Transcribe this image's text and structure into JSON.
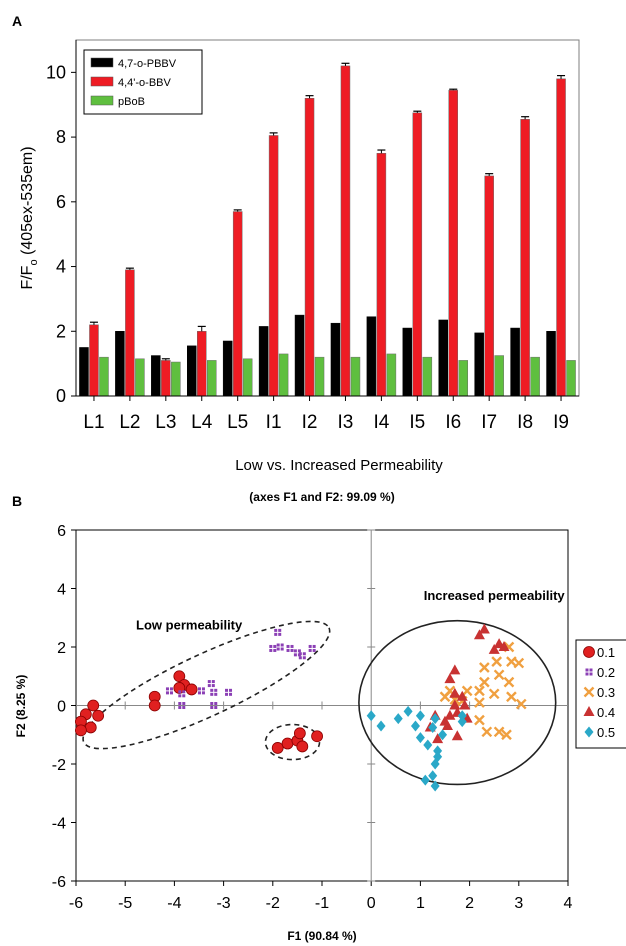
{
  "panels": {
    "a_label": "A",
    "b_label": "B"
  },
  "chart_data": [
    {
      "type": "bar",
      "panel": "A",
      "title": "",
      "xlabel": "Low vs. Increased Permeability",
      "ylabel": "F/F",
      "ylabel_sub": "o",
      "ylabel_rest": " (405ex-535em)",
      "ylim": [
        0,
        11
      ],
      "yticks": [
        0,
        2,
        4,
        6,
        8,
        10
      ],
      "grid": false,
      "legend_position": "top-left",
      "categories": [
        "L1",
        "L2",
        "L3",
        "L4",
        "L5",
        "I1",
        "I2",
        "I3",
        "I4",
        "I5",
        "I6",
        "I7",
        "I8",
        "I9"
      ],
      "series": [
        {
          "name": "4,7-o-PBBV",
          "color": "#000000",
          "values": [
            1.5,
            2.0,
            1.25,
            1.55,
            1.7,
            2.15,
            2.5,
            2.25,
            2.45,
            2.1,
            2.35,
            1.95,
            2.1,
            2.0
          ],
          "errors": [
            0,
            0,
            0,
            0,
            0,
            0,
            0,
            0,
            0,
            0,
            0,
            0,
            0,
            0
          ]
        },
        {
          "name": "4,4'-o-BBV",
          "color": "#ee1c24",
          "values": [
            2.2,
            3.9,
            1.1,
            2.0,
            5.7,
            8.05,
            9.2,
            10.2,
            7.5,
            8.75,
            9.45,
            6.8,
            8.55,
            9.8
          ],
          "errors": [
            0.08,
            0.05,
            0.05,
            0.15,
            0.05,
            0.08,
            0.08,
            0.08,
            0.1,
            0.05,
            0.03,
            0.07,
            0.08,
            0.1
          ]
        },
        {
          "name": "pBoB",
          "color": "#5fbf3f",
          "values": [
            1.2,
            1.15,
            1.05,
            1.1,
            1.15,
            1.3,
            1.2,
            1.2,
            1.3,
            1.2,
            1.1,
            1.25,
            1.2,
            1.1
          ],
          "errors": [
            0,
            0,
            0,
            0,
            0,
            0,
            0,
            0,
            0,
            0,
            0,
            0,
            0,
            0
          ]
        }
      ]
    },
    {
      "type": "scatter",
      "panel": "B",
      "title": "(axes F1 and F2: 99.09 %)",
      "xlabel": "F1 (90.84 %)",
      "ylabel": "F2 (8.25 %)",
      "xlim": [
        -6,
        4
      ],
      "ylim": [
        -6,
        6
      ],
      "xticks": [
        -6,
        -5,
        -4,
        -3,
        -2,
        -1,
        0,
        1,
        2,
        3,
        4
      ],
      "yticks": [
        -6,
        -4,
        -2,
        0,
        2,
        4,
        6
      ],
      "grid": false,
      "legend_position": "right",
      "annotations": [
        {
          "text": "Low permeability",
          "x": -3.7,
          "y": 2.6
        },
        {
          "text": "Increased  permeability",
          "x": 2.5,
          "y": 3.6
        }
      ],
      "ellipses": [
        {
          "name": "low-ellipse-outer",
          "cx": -3.35,
          "cy": 0.7,
          "rx": 2.75,
          "ry": 1.05,
          "angle": 25,
          "style": "dashed"
        },
        {
          "name": "low-ellipse-inner",
          "cx": -1.6,
          "cy": -1.25,
          "rx": 0.55,
          "ry": 0.6,
          "angle": 0,
          "style": "dashed"
        },
        {
          "name": "increased-ellipse",
          "cx": 1.75,
          "cy": 0.1,
          "rx": 2.0,
          "ry": 2.8,
          "angle": 0,
          "style": "solid"
        }
      ],
      "series": [
        {
          "name": "0.1",
          "marker": "circle",
          "color": "#e02020",
          "points": [
            [
              -5.65,
              0
            ],
            [
              -5.8,
              -0.3
            ],
            [
              -5.55,
              -0.35
            ],
            [
              -5.9,
              -0.55
            ],
            [
              -5.7,
              -0.75
            ],
            [
              -5.9,
              -0.85
            ],
            [
              -4.4,
              0.3
            ],
            [
              -4.4,
              0
            ],
            [
              -3.9,
              1.0
            ],
            [
              -3.8,
              0.7
            ],
            [
              -3.9,
              0.6
            ],
            [
              -3.65,
              0.55
            ],
            [
              -1.9,
              -1.45
            ],
            [
              -1.7,
              -1.3
            ],
            [
              -1.5,
              -1.2
            ],
            [
              -1.4,
              -1.4
            ],
            [
              -1.45,
              -0.95
            ],
            [
              -1.1,
              -1.05
            ]
          ]
        },
        {
          "name": "0.2",
          "marker": "square",
          "color": "#8b3fb5",
          "points": [
            [
              -1.9,
              2.5
            ],
            [
              -1.85,
              2.0
            ],
            [
              -2.0,
              1.95
            ],
            [
              -1.65,
              1.95
            ],
            [
              -1.5,
              1.8
            ],
            [
              -1.4,
              1.7
            ],
            [
              -1.2,
              1.95
            ],
            [
              -3.25,
              0.75
            ],
            [
              -3.45,
              0.5
            ],
            [
              -3.2,
              0.45
            ],
            [
              -2.9,
              0.45
            ],
            [
              -3.85,
              0.4
            ],
            [
              -3.85,
              0
            ],
            [
              -3.2,
              0
            ],
            [
              -4.1,
              0.5
            ]
          ]
        },
        {
          "name": "0.3",
          "marker": "x",
          "color": "#f0a040",
          "points": [
            [
              2.8,
              2.0
            ],
            [
              2.55,
              1.5
            ],
            [
              2.85,
              1.5
            ],
            [
              3.0,
              1.45
            ],
            [
              2.3,
              1.3
            ],
            [
              2.6,
              1.05
            ],
            [
              2.3,
              0.8
            ],
            [
              2.8,
              0.8
            ],
            [
              1.6,
              0.5
            ],
            [
              1.95,
              0.5
            ],
            [
              2.2,
              0.5
            ],
            [
              2.5,
              0.4
            ],
            [
              2.85,
              0.3
            ],
            [
              3.05,
              0.05
            ],
            [
              2.2,
              0.1
            ],
            [
              1.85,
              0.15
            ],
            [
              1.5,
              0.3
            ],
            [
              2.35,
              -0.9
            ],
            [
              2.6,
              -0.9
            ],
            [
              2.75,
              -1.0
            ],
            [
              2.2,
              -0.5
            ],
            [
              1.7,
              0.2
            ]
          ]
        },
        {
          "name": "0.4",
          "marker": "triangle",
          "color": "#c83232",
          "points": [
            [
              2.3,
              2.6
            ],
            [
              2.2,
              2.4
            ],
            [
              2.6,
              2.1
            ],
            [
              2.7,
              2.0
            ],
            [
              2.5,
              1.9
            ],
            [
              1.7,
              1.2
            ],
            [
              1.6,
              0.9
            ],
            [
              1.7,
              0.4
            ],
            [
              1.85,
              0.3
            ],
            [
              1.9,
              0.0
            ],
            [
              1.7,
              0.0
            ],
            [
              1.75,
              -0.25
            ],
            [
              1.95,
              -0.45
            ],
            [
              1.6,
              -0.35
            ],
            [
              1.5,
              -0.55
            ],
            [
              1.3,
              -0.35
            ],
            [
              1.55,
              -0.7
            ],
            [
              1.2,
              -0.75
            ],
            [
              1.75,
              -1.05
            ],
            [
              1.35,
              -1.15
            ]
          ]
        },
        {
          "name": "0.5",
          "marker": "diamond",
          "color": "#2aa8c8",
          "points": [
            [
              0.0,
              -0.35
            ],
            [
              0.2,
              -0.7
            ],
            [
              0.55,
              -0.45
            ],
            [
              0.75,
              -0.2
            ],
            [
              1.0,
              -0.35
            ],
            [
              0.9,
              -0.7
            ],
            [
              1.3,
              -0.45
            ],
            [
              1.25,
              -0.75
            ],
            [
              1.45,
              -1.0
            ],
            [
              1.85,
              -0.55
            ],
            [
              1.0,
              -1.1
            ],
            [
              1.15,
              -1.35
            ],
            [
              1.35,
              -1.55
            ],
            [
              1.3,
              -2.0
            ],
            [
              1.25,
              -2.4
            ],
            [
              1.1,
              -2.55
            ],
            [
              1.3,
              -2.75
            ],
            [
              1.35,
              -1.75
            ],
            [
              1.85,
              -0.35
            ]
          ]
        }
      ]
    }
  ]
}
